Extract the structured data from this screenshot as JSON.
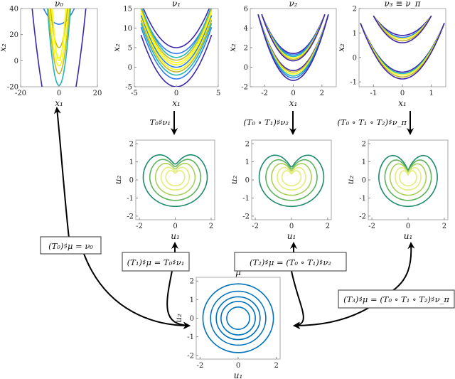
{
  "top_row": [
    {
      "title": "ν₀",
      "xlabel": "x₁",
      "ylabel": "x₂",
      "xticks": [
        "-20",
        "0",
        "20"
      ],
      "yticks": [
        "40",
        "20",
        "0",
        "-20"
      ]
    },
    {
      "title": "ν₁",
      "xlabel": "x₁",
      "ylabel": "x₂",
      "xticks": [
        "-5",
        "0",
        "5"
      ],
      "yticks": [
        "15",
        "10",
        "5",
        "0",
        "-5"
      ]
    },
    {
      "title": "ν₂",
      "xlabel": "x₁",
      "ylabel": "x₂",
      "xticks": [
        "-2",
        "0",
        "2"
      ],
      "yticks": [
        "6",
        "4",
        "2",
        "0",
        "-2"
      ]
    },
    {
      "title": "ν₃ ≡ ν_π",
      "xlabel": "x₁",
      "ylabel": "x₂",
      "xticks": [
        "-1",
        "0",
        "1"
      ],
      "yticks": [
        "2",
        "1",
        "0",
        "-1"
      ]
    }
  ],
  "middle_row": [
    {
      "xlabel": "u₁",
      "ylabel": "u₂",
      "xticks": [
        "-2",
        "0",
        "2"
      ],
      "yticks": [
        "2",
        "1",
        "0",
        "-1",
        "-2"
      ]
    },
    {
      "xlabel": "u₁",
      "ylabel": "u₂",
      "xticks": [
        "-2",
        "0",
        "2"
      ],
      "yticks": [
        "2",
        "1",
        "0",
        "-1",
        "-2"
      ]
    },
    {
      "xlabel": "u₁",
      "ylabel": "u₂",
      "xticks": [
        "-2",
        "0",
        "2"
      ],
      "yticks": [
        "2",
        "1",
        "0",
        "-1",
        "-2"
      ]
    }
  ],
  "reference": {
    "title": "μ",
    "xlabel": "u₁",
    "ylabel": "u₂",
    "xticks": [
      "-2",
      "0",
      "2"
    ],
    "yticks": [
      "2",
      "1",
      "0",
      "-1",
      "-2"
    ]
  },
  "pullback_labels": [
    "T₀♯ν₁",
    "(T₀ ∘ T₁)♯ν₂",
    "(T₀ ∘ T₁ ∘ T₂)♯ν_π"
  ],
  "pushforward_boxes": [
    "(T₀)♯μ = ν₀",
    "(T₁)♯μ = T₀♯ν₁",
    "(T₂)♯μ = (T₀ ∘ T₁)♯ν₂",
    "(T₃)♯μ = (T₀ ∘ T₁ ∘ T₂)♯ν_π"
  ],
  "colors": {
    "top_levels": [
      "#3e26a8",
      "#2f7bf0",
      "#1fb7b7",
      "#c8b52a",
      "#f9fb0e"
    ],
    "middle_levels": [
      "#1e8a6e",
      "#5db35e",
      "#a9d05a",
      "#e4ec7a"
    ],
    "reference": "#0072bd"
  }
}
